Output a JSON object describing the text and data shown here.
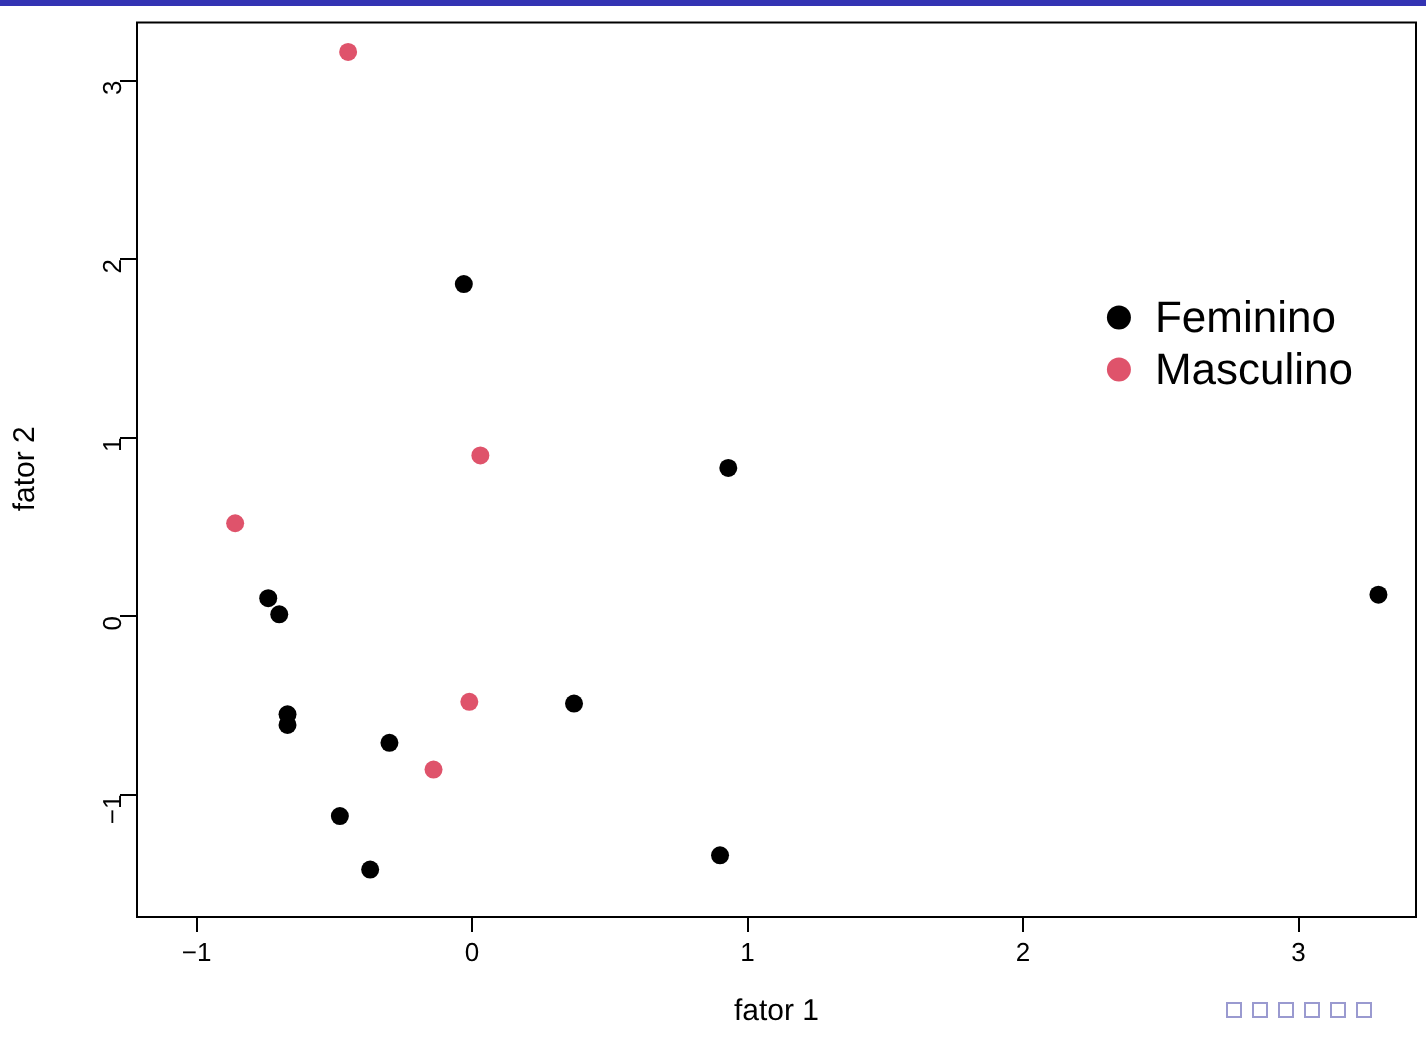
{
  "chart_data": {
    "type": "scatter",
    "xlabel": "fator 1",
    "ylabel": "fator 2",
    "xlim": [
      -1.22,
      3.43
    ],
    "ylim": [
      -1.68,
      3.33
    ],
    "xticks": [
      -1,
      0,
      1,
      2,
      3
    ],
    "yticks": [
      -1,
      0,
      1,
      2,
      3
    ],
    "grid": false,
    "legend": "top right",
    "marker": "circle",
    "series": [
      {
        "name": "Feminino",
        "color": "#000000",
        "x": [
          -0.03,
          0.93,
          -0.74,
          -0.7,
          -0.67,
          -0.67,
          -0.3,
          0.37,
          -0.48,
          -0.37,
          0.9,
          3.29
        ],
        "values": [
          1.86,
          0.83,
          0.1,
          0.01,
          -0.55,
          -0.61,
          -0.71,
          -0.49,
          -1.12,
          -1.42,
          -1.34,
          0.12
        ]
      },
      {
        "name": "Masculino",
        "color": "#df536b",
        "x": [
          -0.45,
          0.03,
          -0.86,
          -0.01,
          -0.14
        ],
        "values": [
          3.16,
          0.9,
          0.52,
          -0.48,
          -0.86
        ]
      }
    ]
  }
}
